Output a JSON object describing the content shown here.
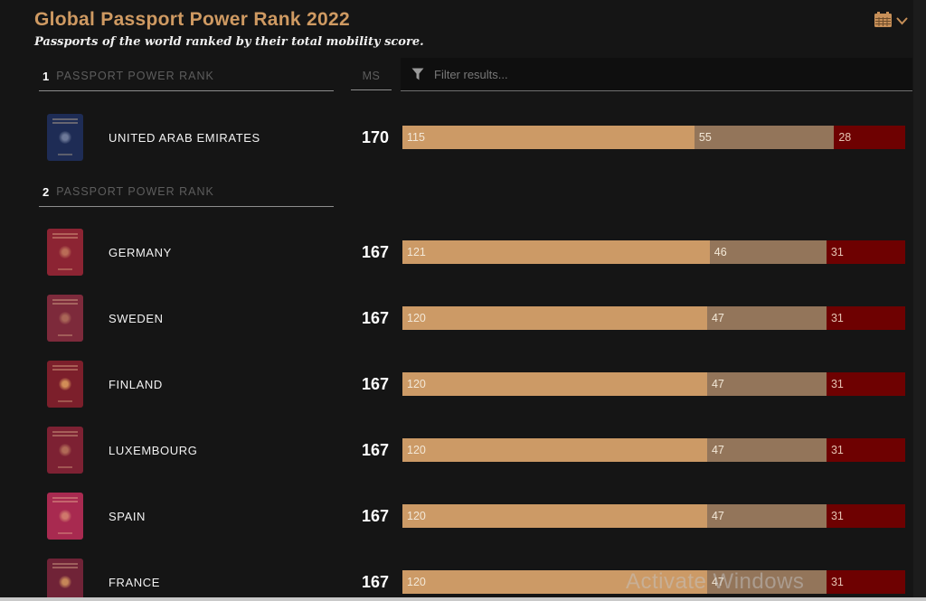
{
  "page": {
    "background": "#151515",
    "accent": "#cf9a62"
  },
  "header": {
    "title": "Global Passport Power Rank 2022",
    "subtitle": "Passports of the world ranked by their total mobility score."
  },
  "filter": {
    "placeholder": "Filter results..."
  },
  "columns": {
    "ms_label": "MS"
  },
  "bar_colors": [
    "#cc9a66",
    "#93755a",
    "#6e0101"
  ],
  "sections": [
    {
      "rank": "1",
      "label": "PASSPORT POWER RANK",
      "rows": [
        {
          "country": "UNITED ARAB EMIRATES",
          "score": "170",
          "segments": [
            115,
            55,
            28
          ],
          "passport_color": "#1e2c55",
          "emblem_color": "rgba(205,215,235,0.45)"
        }
      ]
    },
    {
      "rank": "2",
      "label": "PASSPORT POWER RANK",
      "rows": [
        {
          "country": "GERMANY",
          "score": "167",
          "segments": [
            121,
            46,
            31
          ],
          "passport_color": "#8c2433",
          "emblem_color": "rgba(255,215,140,0.40)"
        },
        {
          "country": "SWEDEN",
          "score": "167",
          "segments": [
            120,
            47,
            31
          ],
          "passport_color": "#7d2a3b",
          "emblem_color": "rgba(255,215,140,0.35)"
        },
        {
          "country": "FINLAND",
          "score": "167",
          "segments": [
            120,
            47,
            31
          ],
          "passport_color": "#7c1f2b",
          "emblem_color": "rgba(255,200,110,0.65)"
        },
        {
          "country": "LUXEMBOURG",
          "score": "167",
          "segments": [
            120,
            47,
            31
          ],
          "passport_color": "#7d2133",
          "emblem_color": "rgba(255,215,140,0.40)"
        },
        {
          "country": "SPAIN",
          "score": "167",
          "segments": [
            120,
            47,
            31
          ],
          "passport_color": "#a82a50",
          "emblem_color": "rgba(255,215,140,0.45)"
        },
        {
          "country": "FRANCE",
          "score": "167",
          "segments": [
            120,
            47,
            31
          ],
          "passport_color": "#702337",
          "emblem_color": "rgba(255,200,110,0.60)"
        }
      ]
    }
  ],
  "chart_data": {
    "type": "bar",
    "orientation": "horizontal",
    "stacked": true,
    "total_per_bar": 198,
    "categories": [
      "UNITED ARAB EMIRATES",
      "GERMANY",
      "SWEDEN",
      "FINLAND",
      "LUXEMBOURG",
      "SPAIN",
      "FRANCE"
    ],
    "mobility_scores": [
      170,
      167,
      167,
      167,
      167,
      167,
      167
    ],
    "series": [
      {
        "name": "segment-1-tan",
        "color": "#cc9a66",
        "values": [
          115,
          121,
          120,
          120,
          120,
          120,
          120
        ]
      },
      {
        "name": "segment-2-brown",
        "color": "#93755a",
        "values": [
          55,
          46,
          47,
          47,
          47,
          47,
          47
        ]
      },
      {
        "name": "segment-3-dark-red",
        "color": "#6e0101",
        "values": [
          28,
          31,
          31,
          31,
          31,
          31,
          31
        ]
      }
    ]
  },
  "watermark": "Activate Windows"
}
